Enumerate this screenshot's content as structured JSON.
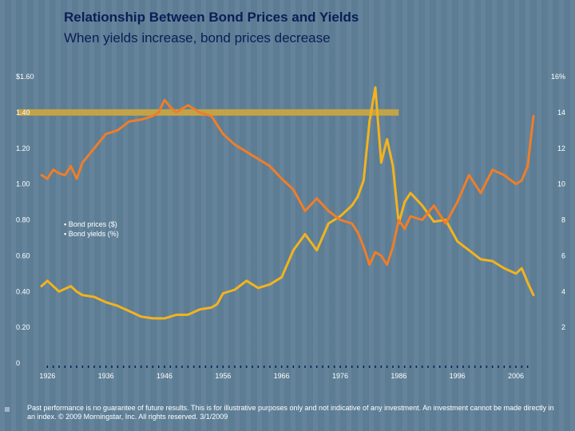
{
  "title": "Relationship Between Bond Prices and Yields",
  "subtitle": "When yields increase, bond prices decrease",
  "footer": "Past performance is no guarantee of future results. This is for illustrative purposes only and not indicative of any investment. An investment cannot be made directly in an index. © 2009 Morningstar, Inc. All rights reserved. 3/1/2009",
  "colors": {
    "background": "#5e7f97",
    "title": "#0b1d55",
    "prices": "#f07d28",
    "yields": "#f3b31c",
    "highlight_band": "#c2a347"
  },
  "chart_data": {
    "type": "line",
    "left_axis": {
      "ticks": [
        "0",
        "0.20",
        "0.40",
        "0.60",
        "0.80",
        "1.00",
        "1.20",
        "1.40",
        "$1.60"
      ],
      "ylim": [
        0,
        1.6
      ]
    },
    "right_axis": {
      "ticks": [
        "",
        "2",
        "4",
        "6",
        "8",
        "10",
        "12",
        "14",
        "16%"
      ],
      "ylim": [
        0,
        16
      ]
    },
    "xlim": [
      1925,
      2009
    ],
    "x_tick_labels": [
      "1926",
      "1936",
      "1946",
      "1956",
      "1966",
      "1976",
      "1986",
      "1996",
      "2006"
    ],
    "legend": [
      "Bond prices ($)",
      "Bond yields (%)"
    ],
    "legend_placement": "center-left",
    "series": [
      {
        "name": "Bond prices ($)",
        "axis": "left",
        "x": [
          1925,
          1926,
          1927,
          1928,
          1929,
          1930,
          1931,
          1932,
          1934,
          1936,
          1938,
          1940,
          1942,
          1944,
          1945,
          1946,
          1947,
          1948,
          1950,
          1952,
          1954,
          1955,
          1956,
          1958,
          1960,
          1962,
          1964,
          1966,
          1968,
          1970,
          1972,
          1974,
          1976,
          1978,
          1979,
          1980,
          1981,
          1982,
          1983,
          1984,
          1985,
          1986,
          1987,
          1988,
          1990,
          1992,
          1994,
          1996,
          1998,
          2000,
          2002,
          2004,
          2006,
          2007,
          2008,
          2009
        ],
        "values": [
          1.05,
          1.03,
          1.08,
          1.06,
          1.05,
          1.1,
          1.03,
          1.12,
          1.2,
          1.28,
          1.3,
          1.35,
          1.36,
          1.38,
          1.4,
          1.47,
          1.43,
          1.4,
          1.44,
          1.4,
          1.38,
          1.33,
          1.28,
          1.22,
          1.18,
          1.14,
          1.1,
          1.03,
          0.97,
          0.85,
          0.92,
          0.85,
          0.8,
          0.78,
          0.73,
          0.65,
          0.55,
          0.62,
          0.6,
          0.55,
          0.65,
          0.8,
          0.75,
          0.82,
          0.8,
          0.88,
          0.78,
          0.9,
          1.05,
          0.95,
          1.08,
          1.05,
          1.0,
          1.02,
          1.1,
          1.38
        ]
      },
      {
        "name": "Bond yields (%)",
        "axis": "right",
        "x": [
          1925,
          1926,
          1928,
          1930,
          1931,
          1932,
          1934,
          1936,
          1938,
          1940,
          1942,
          1944,
          1946,
          1948,
          1950,
          1952,
          1954,
          1955,
          1956,
          1958,
          1960,
          1962,
          1964,
          1966,
          1968,
          1970,
          1972,
          1974,
          1976,
          1978,
          1979,
          1980,
          1981,
          1982,
          1983,
          1984,
          1985,
          1986,
          1987,
          1988,
          1990,
          1992,
          1994,
          1996,
          1998,
          2000,
          2002,
          2004,
          2006,
          2007,
          2008,
          2009
        ],
        "values": [
          4.3,
          4.6,
          4.0,
          4.3,
          4.0,
          3.8,
          3.7,
          3.4,
          3.2,
          2.9,
          2.6,
          2.5,
          2.5,
          2.7,
          2.7,
          3.0,
          3.1,
          3.3,
          3.9,
          4.1,
          4.6,
          4.2,
          4.4,
          4.8,
          6.3,
          7.2,
          6.3,
          7.8,
          8.2,
          8.8,
          9.3,
          10.2,
          13.5,
          15.4,
          11.2,
          12.5,
          11.0,
          7.8,
          9.0,
          9.5,
          8.8,
          7.9,
          8.0,
          6.8,
          6.3,
          5.8,
          5.7,
          5.3,
          5.0,
          5.3,
          4.5,
          3.8
        ]
      }
    ],
    "highlight_band": {
      "y": 1.4,
      "x_range": [
        1925,
        1986
      ]
    }
  }
}
